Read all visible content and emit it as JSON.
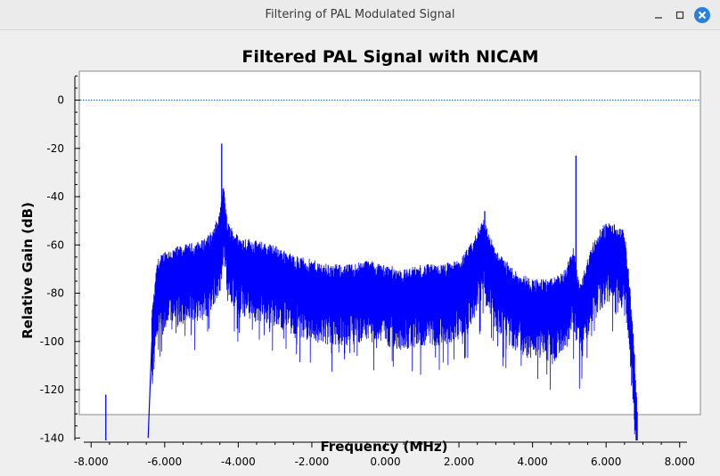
{
  "window": {
    "title": "Filtering of PAL Modulated Signal",
    "buttons": {
      "minimize": "minimize-icon",
      "maximize": "maximize-icon",
      "close": "close-icon"
    },
    "close_color": "#2b80d9"
  },
  "chart_data": {
    "type": "line",
    "title": "Filtered PAL Signal with NICAM",
    "xlabel": "Frequency (MHz)",
    "ylabel": "Relative Gain (dB)",
    "xlim": [
      -8.2,
      8.2
    ],
    "ylim": [
      -141,
      12
    ],
    "x_ticks": [
      -8,
      -6,
      -4,
      -2,
      0,
      2,
      4,
      6,
      8
    ],
    "x_tick_labels": [
      "-8.000",
      "-6.000",
      "-4.000",
      "-2.000",
      "0.000",
      "2.000",
      "4.000",
      "6.000",
      "8.000"
    ],
    "y_ticks": [
      0,
      -20,
      -40,
      -60,
      -80,
      -100,
      -120,
      -140
    ],
    "y_tick_labels": [
      "0",
      "-20",
      "-40",
      "-60",
      "-80",
      "-100",
      "-120",
      "-140"
    ],
    "reference_line": {
      "y": 0,
      "style": "dotted",
      "color": "#1565c0"
    },
    "series": [
      {
        "color": "#0000ff",
        "x": [
          -7.6,
          -6.45,
          -6.35,
          -6.2,
          -6.0,
          -5.5,
          -5.0,
          -4.7,
          -4.5,
          -4.4,
          -4.3,
          -4.0,
          -3.5,
          -3.0,
          -2.5,
          -2.0,
          -1.5,
          -1.0,
          -0.5,
          0.0,
          0.5,
          1.0,
          1.5,
          2.0,
          2.3,
          2.5,
          2.65,
          2.8,
          3.0,
          3.5,
          4.0,
          4.5,
          4.9,
          5.1,
          5.2,
          5.3,
          5.6,
          5.9,
          6.1,
          6.3,
          6.5,
          6.6,
          6.75,
          6.85
        ],
        "y": [
          -140,
          -140,
          -100,
          -78,
          -74,
          -72,
          -70,
          -66,
          -58,
          -46,
          -62,
          -68,
          -70,
          -72,
          -76,
          -78,
          -80,
          -80,
          -78,
          -80,
          -82,
          -80,
          -80,
          -78,
          -72,
          -66,
          -60,
          -66,
          -74,
          -82,
          -86,
          -86,
          -82,
          -72,
          -82,
          -88,
          -72,
          -64,
          -62,
          -64,
          -66,
          -80,
          -110,
          -140
        ]
      }
    ],
    "spikes": [
      {
        "x": -4.45,
        "y": -18
      },
      {
        "x": 2.7,
        "y": -46
      },
      {
        "x": 5.18,
        "y": -23
      },
      {
        "x": 6.05,
        "y": -53
      },
      {
        "x": -7.6,
        "y": -122
      }
    ],
    "grid": false,
    "legend": "none"
  }
}
